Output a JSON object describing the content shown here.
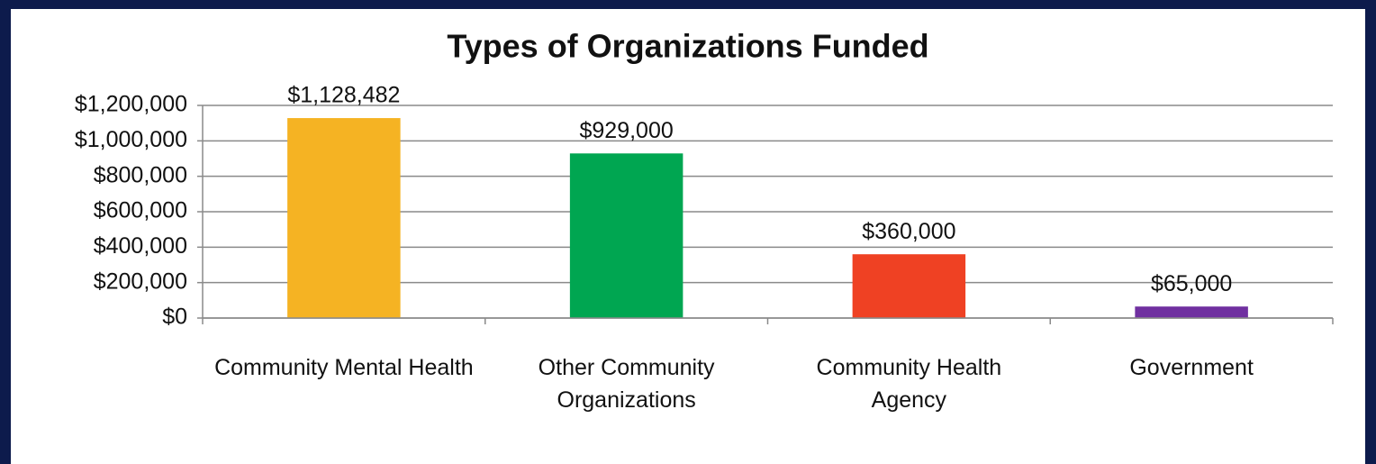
{
  "chart_data": {
    "type": "bar",
    "title": "Types of Organizations Funded",
    "categories": [
      "Community Mental Health",
      "Other Community Organizations",
      "Community Health Agency",
      "Government"
    ],
    "values": [
      1128482,
      929000,
      360000,
      65000
    ],
    "value_labels": [
      "$1,128,482",
      "$929,000",
      "$360,000",
      "$65,000"
    ],
    "colors": [
      "#f5b323",
      "#00a651",
      "#ef4123",
      "#7030a0"
    ],
    "ylim": [
      0,
      1200000
    ],
    "yticks": [
      {
        "value": 0,
        "label": "$0"
      },
      {
        "value": 200000,
        "label": "$200,000"
      },
      {
        "value": 400000,
        "label": "$400,000"
      },
      {
        "value": 600000,
        "label": "$600,000"
      },
      {
        "value": 800000,
        "label": "$800,000"
      },
      {
        "value": 1000000,
        "label": "$1,000,000"
      },
      {
        "value": 1200000,
        "label": "$1,200,000"
      }
    ],
    "grid": true
  }
}
